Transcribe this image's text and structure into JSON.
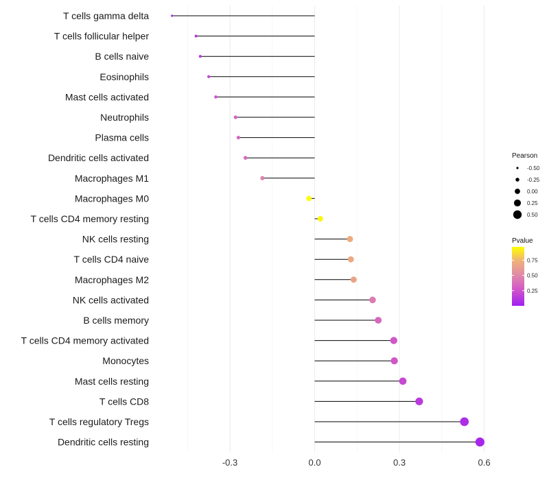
{
  "chart_data": {
    "type": "lollipop",
    "title": "",
    "xlabel": "",
    "ylabel": "",
    "xlim": [
      -0.56,
      0.64
    ],
    "xticks": [
      -0.3,
      0.0,
      0.3,
      0.6
    ],
    "xtick_labels": [
      "-0.3",
      "0.0",
      "0.3",
      "0.6"
    ],
    "grid": true,
    "categories": [
      "T cells gamma delta",
      "T cells follicular helper",
      "B cells naive",
      "Eosinophils",
      "Mast cells activated",
      "Neutrophils",
      "Plasma cells",
      "Dendritic cells activated",
      "Macrophages M1",
      "Macrophages M0",
      "T cells CD4 memory resting",
      "NK cells resting",
      "T cells CD4 naive",
      "Macrophages M2",
      "NK cells activated",
      "B cells memory",
      "T cells CD4 memory activated",
      "Monocytes",
      "Mast cells resting",
      "T cells CD8",
      "T cells regulatory  Tregs",
      "Dendritic cells resting"
    ],
    "pearson": [
      -0.505,
      -0.42,
      -0.405,
      -0.375,
      -0.35,
      -0.28,
      -0.27,
      -0.245,
      -0.185,
      -0.02,
      0.02,
      0.125,
      0.128,
      0.138,
      0.205,
      0.225,
      0.28,
      0.282,
      0.312,
      0.37,
      0.53,
      0.585
    ],
    "pvalue": [
      0.02,
      0.08,
      0.1,
      0.18,
      0.22,
      0.3,
      0.32,
      0.34,
      0.45,
      0.96,
      0.94,
      0.7,
      0.68,
      0.65,
      0.42,
      0.32,
      0.24,
      0.24,
      0.18,
      0.12,
      0.06,
      0.03
    ],
    "legend_size": {
      "title": "Pearson",
      "entries": [
        "-0.50",
        "-0.25",
        "0.00",
        "0.25",
        "0.50"
      ],
      "values": [
        -0.5,
        -0.25,
        0.0,
        0.25,
        0.5
      ]
    },
    "legend_color": {
      "title": "Pvalue",
      "entries": [
        "0.75",
        "0.50",
        "0.25"
      ],
      "values": [
        0.75,
        0.5,
        0.25
      ],
      "range": [
        0.0,
        0.97
      ],
      "colors": [
        "#a020f0",
        "#d257c8",
        "#e08aa8",
        "#efb07a",
        "#ffff00"
      ]
    },
    "legend_position": "right"
  }
}
